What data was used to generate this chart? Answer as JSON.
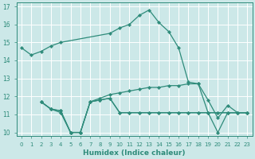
{
  "xlabel": "Humidex (Indice chaleur)",
  "bg_color": "#cce8e8",
  "grid_color": "#ffffff",
  "line_color": "#2e8b7a",
  "xlim": [
    -0.5,
    23.5
  ],
  "ylim": [
    9.8,
    17.2
  ],
  "yticks": [
    10,
    11,
    12,
    13,
    14,
    15,
    16,
    17
  ],
  "xticks": [
    0,
    1,
    2,
    3,
    4,
    5,
    6,
    7,
    8,
    9,
    10,
    11,
    12,
    13,
    14,
    15,
    16,
    17,
    18,
    19,
    20,
    21,
    22,
    23
  ],
  "series": [
    {
      "x": [
        0,
        1,
        2,
        3,
        4,
        9,
        10,
        11,
        12,
        13,
        14,
        15,
        16,
        17,
        18,
        19,
        20,
        21,
        22,
        23
      ],
      "y": [
        14.7,
        14.3,
        14.5,
        14.8,
        15.0,
        15.5,
        15.8,
        16.0,
        16.5,
        16.8,
        16.1,
        15.6,
        14.7,
        12.8,
        12.7,
        11.8,
        10.8,
        11.5,
        11.1,
        11.1
      ]
    },
    {
      "x": [
        2,
        3,
        4,
        5,
        6,
        7,
        8,
        9,
        10,
        11,
        12,
        13,
        14,
        15,
        16,
        17,
        18,
        19,
        20,
        21,
        22,
        23
      ],
      "y": [
        11.7,
        11.3,
        11.2,
        10.0,
        10.0,
        11.7,
        11.9,
        12.1,
        12.2,
        12.3,
        12.4,
        12.5,
        12.5,
        12.6,
        12.6,
        12.7,
        12.7,
        11.1,
        11.1,
        11.1,
        11.1,
        11.1
      ]
    },
    {
      "x": [
        2,
        3,
        4,
        5,
        6,
        7,
        8,
        9,
        10,
        11,
        12,
        13,
        14,
        15,
        16,
        17,
        18,
        19,
        20,
        21,
        22,
        23
      ],
      "y": [
        11.7,
        11.3,
        11.1,
        10.0,
        10.0,
        11.7,
        11.8,
        11.9,
        11.1,
        11.1,
        11.1,
        11.1,
        11.1,
        11.1,
        11.1,
        11.1,
        11.1,
        11.1,
        11.1,
        11.1,
        11.1,
        11.1
      ]
    },
    {
      "x": [
        2,
        3,
        4,
        5,
        6,
        7,
        8,
        9,
        10,
        11,
        12,
        13,
        14,
        15,
        16,
        17,
        18,
        19,
        20,
        21,
        22,
        23
      ],
      "y": [
        11.7,
        11.3,
        11.2,
        10.0,
        10.0,
        11.7,
        11.8,
        11.9,
        11.1,
        11.1,
        11.1,
        11.1,
        11.1,
        11.1,
        11.1,
        11.1,
        11.1,
        11.1,
        10.0,
        11.1,
        11.1,
        11.1
      ]
    }
  ]
}
